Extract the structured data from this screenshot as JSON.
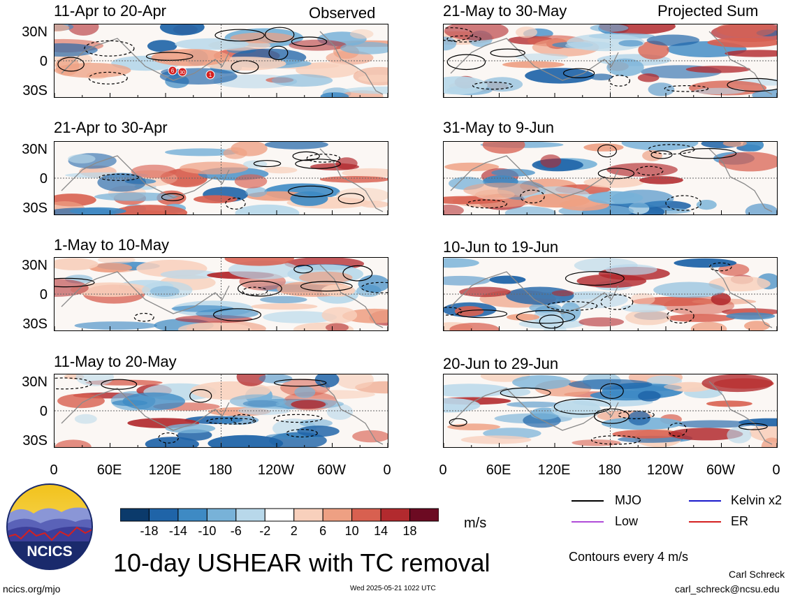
{
  "header": {
    "left_label": "Observed",
    "right_label": "Projected Sum"
  },
  "panels_left": [
    {
      "title": "11-Apr to 20-Apr"
    },
    {
      "title": "21-Apr to 30-Apr"
    },
    {
      "title": "1-May to 10-May"
    },
    {
      "title": "11-May to 20-May"
    }
  ],
  "panels_right": [
    {
      "title": "21-May to 30-May"
    },
    {
      "title": "31-May to 9-Jun"
    },
    {
      "title": "10-Jun to 19-Jun"
    },
    {
      "title": "20-Jun to 29-Jun"
    }
  ],
  "y_ticks": [
    "30N",
    "0",
    "30S"
  ],
  "x_ticks": [
    "0",
    "60E",
    "120E",
    "180",
    "120W",
    "60W",
    "0"
  ],
  "tc_markers": [
    "6",
    "30",
    "1"
  ],
  "colorbar": {
    "labels": [
      "-18",
      "-14",
      "-10",
      "-6",
      "-2",
      "2",
      "6",
      "10",
      "14",
      "18"
    ],
    "colors": [
      "#0b3a6b",
      "#1f64a8",
      "#3e8ac4",
      "#78b2d8",
      "#b8d8ea",
      "#ffffff",
      "#f8d0bc",
      "#eea083",
      "#d86050",
      "#b22a2e",
      "#6c0a22"
    ],
    "unit": "m/s"
  },
  "legend": {
    "items": [
      {
        "label": "MJO",
        "color": "#000000"
      },
      {
        "label": "Kelvin x2",
        "color": "#1a1acc"
      },
      {
        "label": "Low",
        "color": "#b04cd8"
      },
      {
        "label": "ER",
        "color": "#d42020"
      }
    ],
    "contours_note": "Contours every 4 m/s"
  },
  "title": "10-day USHEAR with TC removal",
  "logo_text": "NCICS",
  "footer": {
    "url": "ncics.org/mjo",
    "timestamp": "Wed 2025-05-21 1022 UTC",
    "author": "Carl Schreck",
    "email": "carl_schreck@ncsu.edu"
  }
}
